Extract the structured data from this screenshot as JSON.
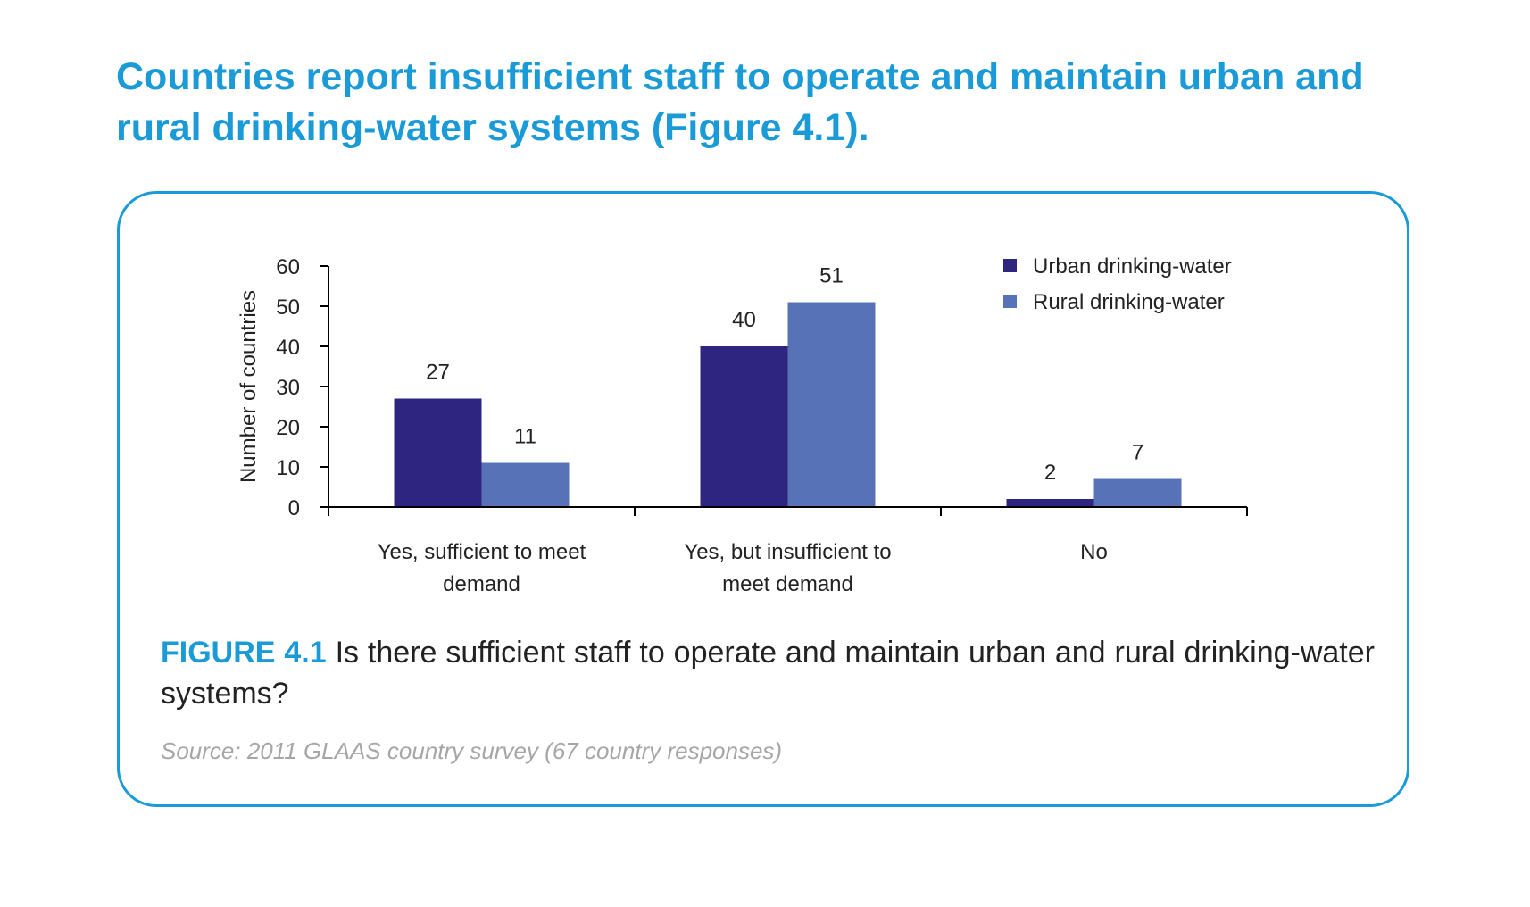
{
  "headline": "Countries report insufficient staff to operate and maintain urban and rural drinking-water systems (Figure 4.1).",
  "caption": {
    "label": "FIGURE 4.1",
    "text": " Is there sufficient staff to operate and maintain urban and rural drinking-water systems?"
  },
  "source": "Source: 2011 GLAAS country survey (67 country responses)",
  "chart_data": {
    "type": "bar",
    "title": "",
    "xlabel": "",
    "ylabel": "Number of countries",
    "ylim": [
      0,
      60
    ],
    "yticks": [
      0,
      10,
      20,
      30,
      40,
      50,
      60
    ],
    "categories": [
      [
        "Yes, sufficient to meet",
        "demand"
      ],
      [
        "Yes, but insufficient to",
        "meet demand"
      ],
      [
        "No"
      ]
    ],
    "series": [
      {
        "name": "Urban drinking-water",
        "color": "#2e2580",
        "values": [
          27,
          40,
          2
        ]
      },
      {
        "name": "Rural drinking-water",
        "color": "#5872b8",
        "values": [
          11,
          51,
          7
        ]
      }
    ],
    "legend": "top-right",
    "grid": false,
    "data_labels": true
  }
}
